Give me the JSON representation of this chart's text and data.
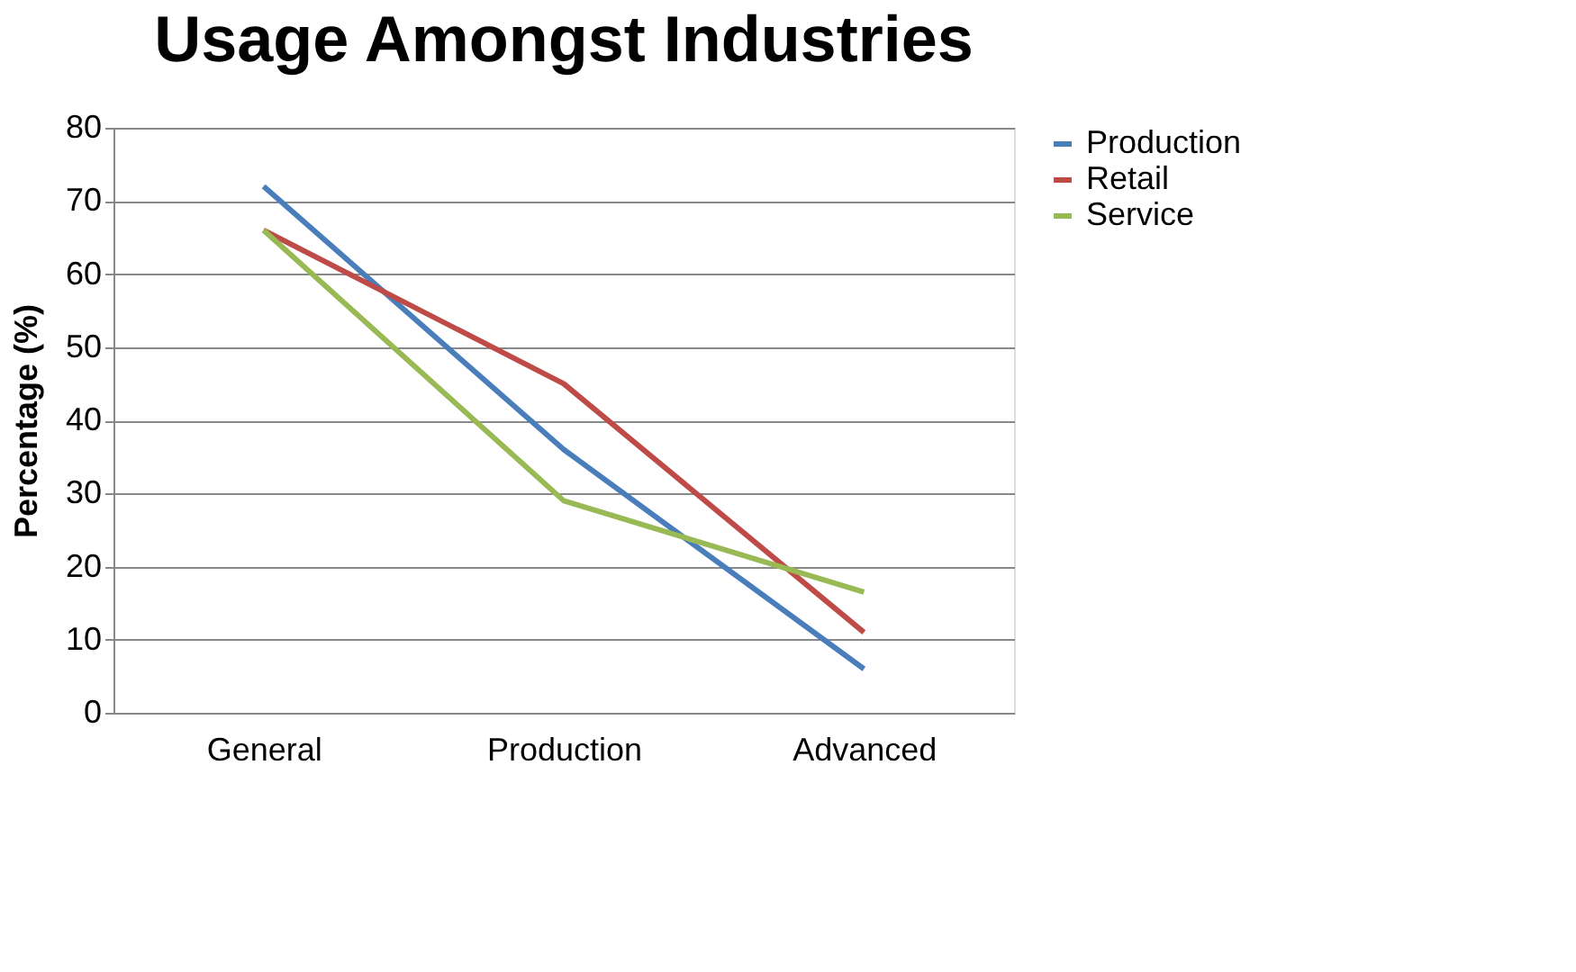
{
  "chart_data": {
    "type": "line",
    "title": "Usage Amongst Industries",
    "ylabel": "Percentage (%)",
    "categories": [
      "General",
      "Production",
      "Advanced"
    ],
    "series": [
      {
        "name": "Production",
        "color": "#4a7ebb",
        "values": [
          72,
          36,
          6
        ]
      },
      {
        "name": "Retail",
        "color": "#be4b48",
        "values": [
          66,
          45,
          11
        ]
      },
      {
        "name": "Service",
        "color": "#98b954",
        "values": [
          66,
          29,
          16.5
        ]
      }
    ],
    "ylim": [
      0,
      80
    ],
    "yticks": [
      0,
      10,
      20,
      30,
      40,
      50,
      60,
      70,
      80
    ],
    "grid": "y",
    "legend": "right",
    "marker": "none",
    "line_style": "solid"
  }
}
